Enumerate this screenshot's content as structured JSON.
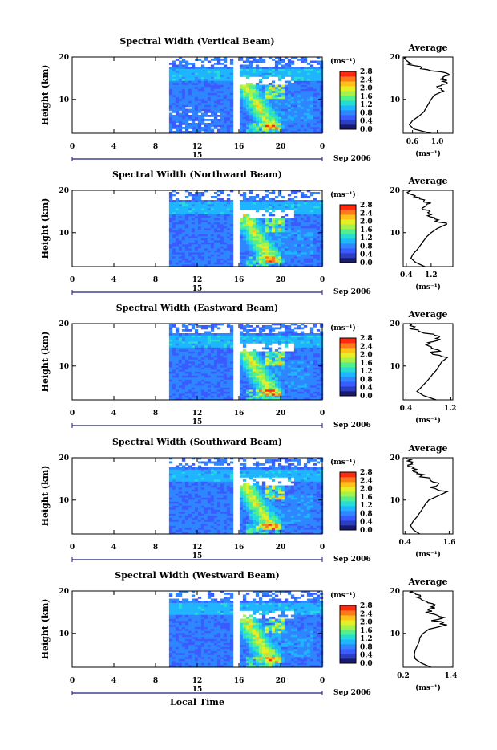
{
  "figure": {
    "xlabel": "Local Time",
    "date_label": "Sep 2006",
    "date_day": "15",
    "x_ticks": [
      "0",
      "4",
      "8",
      "12",
      "16",
      "20",
      "0"
    ],
    "colorbar_unit": "(ms⁻¹)",
    "colorbar_ticks": [
      "0.0",
      "0.4",
      "0.8",
      "1.2",
      "1.6",
      "2.0",
      "2.4",
      "2.8"
    ],
    "average_title": "Average",
    "average_unit": "(ms⁻¹)",
    "ylabel": "Height (km)",
    "y_ticks": [
      "10",
      "20"
    ],
    "colormap": [
      "#1a1a6e",
      "#2b3fbf",
      "#3a5bff",
      "#2f86ff",
      "#1fb5ff",
      "#27dcd5",
      "#52ef8f",
      "#a5f24d",
      "#e6ef26",
      "#ffc21a",
      "#ff7a1a",
      "#ff2a10"
    ],
    "white_gap_color": "#ffffff"
  },
  "chart_data": [
    {
      "type": "heatmap",
      "title": "Spectral Width (Vertical Beam)",
      "xlabel": "Local Time",
      "ylabel": "Height (km)",
      "xlim": [
        0,
        24
      ],
      "ylim": [
        2,
        20
      ],
      "data_start_hour": 9.3,
      "data_gap_hour": 15.6,
      "colorbar_range": [
        0.0,
        2.8
      ],
      "average_profile": {
        "xlim": [
          0.45,
          1.25
        ],
        "xticks": [
          "0.6",
          "1.0"
        ],
        "ylim": [
          2,
          20
        ],
        "height": [
          2,
          3,
          4,
          5,
          6,
          7,
          8,
          9,
          10,
          11,
          12,
          13,
          14,
          15,
          16,
          17,
          18,
          19,
          20
        ],
        "value": [
          0.9,
          0.62,
          0.55,
          0.6,
          0.7,
          0.78,
          0.82,
          0.86,
          0.9,
          0.95,
          1.1,
          1.0,
          1.12,
          1.05,
          1.2,
          0.8,
          0.62,
          0.55,
          0.5
        ]
      }
    },
    {
      "type": "heatmap",
      "title": "Spectral Width (Northward Beam)",
      "xlabel": "Local Time",
      "ylabel": "Height (km)",
      "xlim": [
        0,
        24
      ],
      "ylim": [
        2,
        20
      ],
      "data_start_hour": 9.3,
      "data_gap_hour": 15.6,
      "colorbar_range": [
        0.0,
        2.8
      ],
      "average_profile": {
        "xlim": [
          0.3,
          1.9
        ],
        "xticks": [
          "0.4",
          "1.2"
        ],
        "ylim": [
          2,
          20
        ],
        "height": [
          2,
          3,
          4,
          5,
          6,
          7,
          8,
          9,
          10,
          11,
          12,
          13,
          14,
          15,
          16,
          17,
          18,
          19,
          20
        ],
        "value": [
          1.0,
          0.7,
          0.55,
          0.62,
          0.75,
          0.85,
          0.95,
          1.05,
          1.2,
          1.4,
          1.7,
          1.3,
          1.05,
          1.2,
          0.9,
          1.15,
          0.75,
          0.6,
          0.55
        ]
      }
    },
    {
      "type": "heatmap",
      "title": "Spectral Width (Eastward Beam)",
      "xlabel": "Local Time",
      "ylabel": "Height (km)",
      "xlim": [
        0,
        24
      ],
      "ylim": [
        2,
        20
      ],
      "data_start_hour": 9.3,
      "data_gap_hour": 15.6,
      "colorbar_range": [
        0.0,
        2.8
      ],
      "average_profile": {
        "xlim": [
          0.35,
          1.25
        ],
        "xticks": [
          "0.4",
          "1.2"
        ],
        "ylim": [
          2,
          20
        ],
        "height": [
          2,
          3,
          4,
          5,
          6,
          7,
          8,
          9,
          10,
          11,
          12,
          13,
          14,
          15,
          16,
          17,
          18,
          19,
          20
        ],
        "value": [
          0.95,
          0.72,
          0.6,
          0.68,
          0.75,
          0.82,
          0.88,
          0.95,
          1.0,
          1.05,
          1.15,
          0.9,
          1.0,
          0.7,
          0.95,
          1.05,
          0.6,
          0.5,
          0.45
        ]
      }
    },
    {
      "type": "heatmap",
      "title": "Spectral Width (Southward Beam)",
      "xlabel": "Local Time",
      "ylabel": "Height (km)",
      "xlim": [
        0,
        24
      ],
      "ylim": [
        2,
        20
      ],
      "data_start_hour": 9.3,
      "data_gap_hour": 15.6,
      "colorbar_range": [
        0.0,
        2.8
      ],
      "average_profile": {
        "xlim": [
          0.35,
          1.7
        ],
        "xticks": [
          "0.4",
          "1.6"
        ],
        "ylim": [
          2,
          20
        ],
        "height": [
          2,
          3,
          4,
          5,
          6,
          7,
          8,
          9,
          10,
          11,
          12,
          13,
          14,
          15,
          16,
          17,
          18,
          19,
          20
        ],
        "value": [
          0.8,
          0.62,
          0.55,
          0.62,
          0.72,
          0.8,
          0.88,
          0.95,
          1.05,
          1.3,
          1.55,
          1.1,
          1.3,
          1.0,
          0.85,
          0.7,
          0.58,
          0.5,
          0.45
        ]
      }
    },
    {
      "type": "heatmap",
      "title": "Spectral Width (Westward Beam)",
      "xlabel": "Local Time",
      "ylabel": "Height (km)",
      "xlim": [
        0,
        24
      ],
      "ylim": [
        2,
        20
      ],
      "data_start_hour": 9.3,
      "data_gap_hour": 15.6,
      "colorbar_range": [
        0.0,
        2.8
      ],
      "average_profile": {
        "xlim": [
          0.2,
          1.45
        ],
        "xticks": [
          "0.2",
          "1.4"
        ],
        "ylim": [
          2,
          20
        ],
        "height": [
          2,
          3,
          4,
          5,
          6,
          7,
          8,
          9,
          10,
          11,
          12,
          13,
          14,
          15,
          16,
          17,
          18,
          19,
          20
        ],
        "value": [
          0.9,
          0.65,
          0.5,
          0.48,
          0.5,
          0.55,
          0.6,
          0.62,
          0.7,
          0.85,
          1.3,
          1.0,
          1.2,
          0.8,
          0.9,
          0.95,
          0.7,
          0.55,
          0.45
        ]
      }
    }
  ]
}
